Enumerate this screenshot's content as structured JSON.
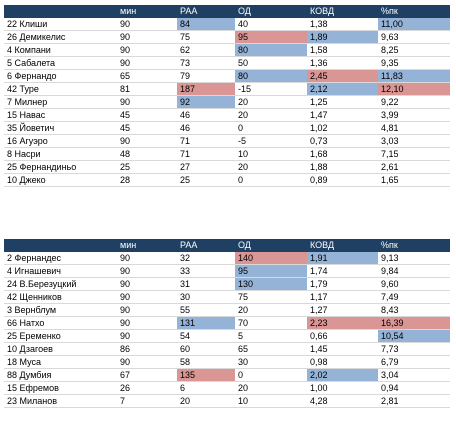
{
  "headers": [
    "",
    "мин",
    "РАА",
    "ОД",
    "КОВД",
    "%пк"
  ],
  "colors": {
    "header_bg": "#1f3f63",
    "blue": "#95b3d7",
    "red": "#da9694"
  },
  "table1": [
    {
      "cells": [
        "22 Клиши",
        "90",
        "84",
        "40",
        "1,38",
        "11,00"
      ],
      "hl": {
        "2": "blue",
        "5": "blue"
      }
    },
    {
      "cells": [
        "26 Демикелис",
        "90",
        "75",
        "95",
        "1,89",
        "9,63"
      ],
      "hl": {
        "3": "red",
        "4": "blue"
      }
    },
    {
      "cells": [
        "4 Компани",
        "90",
        "62",
        "80",
        "1,58",
        "8,25"
      ],
      "hl": {
        "3": "blue"
      }
    },
    {
      "cells": [
        "5 Сабалета",
        "90",
        "73",
        "50",
        "1,36",
        "9,35"
      ],
      "hl": {}
    },
    {
      "cells": [
        "6 Фернандо",
        "65",
        "79",
        "80",
        "2,45",
        "11,83"
      ],
      "hl": {
        "3": "blue",
        "4": "red",
        "5": "blue"
      }
    },
    {
      "cells": [
        "42 Туре",
        "81",
        "187",
        "-15",
        "2,12",
        "12,10"
      ],
      "hl": {
        "2": "red",
        "4": "blue",
        "5": "red"
      }
    },
    {
      "cells": [
        "7 Милнер",
        "90",
        "92",
        "20",
        "1,25",
        "9,22"
      ],
      "hl": {
        "2": "blue"
      }
    },
    {
      "cells": [
        "15 Навас",
        "45",
        "46",
        "20",
        "1,47",
        "3,99"
      ],
      "hl": {}
    },
    {
      "cells": [
        "35 Йоветич",
        "45",
        "46",
        "0",
        "1,02",
        "4,81"
      ],
      "hl": {}
    },
    {
      "cells": [
        "16 Агуэро",
        "90",
        "71",
        "-5",
        "0,73",
        "3,03"
      ],
      "hl": {}
    },
    {
      "cells": [
        "8 Насри",
        "48",
        "71",
        "10",
        "1,68",
        "7,15"
      ],
      "hl": {}
    },
    {
      "cells": [
        "25 Фернандиньо",
        "25",
        "27",
        "20",
        "1,88",
        "2,61"
      ],
      "hl": {}
    },
    {
      "cells": [
        "10 Джеко",
        "28",
        "25",
        "0",
        "0,89",
        "1,65"
      ],
      "hl": {}
    }
  ],
  "table2": [
    {
      "cells": [
        "2 Фернандес",
        "90",
        "32",
        "140",
        "1,91",
        "9,13"
      ],
      "hl": {
        "3": "red",
        "4": "blue"
      }
    },
    {
      "cells": [
        "4 Игнашевич",
        "90",
        "33",
        "95",
        "1,74",
        "9,84"
      ],
      "hl": {
        "3": "blue"
      }
    },
    {
      "cells": [
        "24 В.Березуцкий",
        "90",
        "31",
        "130",
        "1,79",
        "9,60"
      ],
      "hl": {
        "3": "blue"
      }
    },
    {
      "cells": [
        "42 Щенников",
        "90",
        "30",
        "75",
        "1,17",
        "7,49"
      ],
      "hl": {}
    },
    {
      "cells": [
        "3 Вернблум",
        "90",
        "55",
        "20",
        "1,27",
        "8,43"
      ],
      "hl": {}
    },
    {
      "cells": [
        "66 Натхо",
        "90",
        "131",
        "70",
        "2,23",
        "16,39"
      ],
      "hl": {
        "2": "blue",
        "4": "red",
        "5": "red"
      }
    },
    {
      "cells": [
        "25 Еременко",
        "90",
        "54",
        "5",
        "0,66",
        "10,54"
      ],
      "hl": {
        "5": "blue"
      }
    },
    {
      "cells": [
        "10 Дзагоев",
        "86",
        "60",
        "65",
        "1,45",
        "7,73"
      ],
      "hl": {}
    },
    {
      "cells": [
        "18 Муса",
        "90",
        "58",
        "30",
        "0,98",
        "6,79"
      ],
      "hl": {}
    },
    {
      "cells": [
        "88 Думбия",
        "67",
        "135",
        "0",
        "2,02",
        "3,04"
      ],
      "hl": {
        "2": "red",
        "4": "blue"
      }
    },
    {
      "cells": [
        "15 Ефремов",
        "26",
        "6",
        "20",
        "1,00",
        "0,94"
      ],
      "hl": {}
    },
    {
      "cells": [
        "23 Миланов",
        "7",
        "20",
        "10",
        "4,28",
        "2,81"
      ],
      "hl": {}
    }
  ]
}
